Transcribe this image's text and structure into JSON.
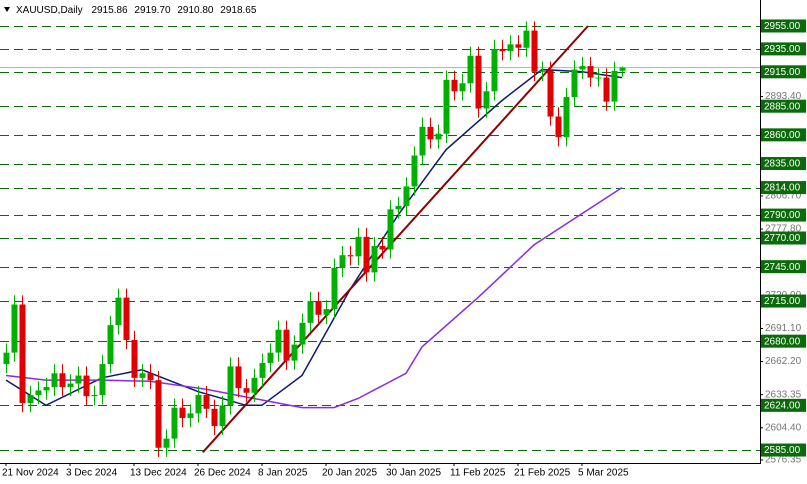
{
  "chart_data": {
    "type": "candlestick",
    "title": "XAUUSD,Daily",
    "last_labels": {
      "open": "2915.86",
      "high": "2919.70",
      "low": "2910.80",
      "close": "2918.65"
    },
    "categories": [
      "21 Nov 2024",
      null,
      null,
      null,
      null,
      null,
      null,
      null,
      "3 Dec 2024",
      null,
      null,
      null,
      null,
      null,
      null,
      null,
      "13 Dec 2024",
      null,
      null,
      null,
      null,
      null,
      null,
      null,
      "26 Dec 2024",
      null,
      null,
      null,
      null,
      null,
      null,
      null,
      "8 Jan 2025",
      null,
      null,
      null,
      null,
      null,
      null,
      null,
      "20 Jan 2025",
      null,
      null,
      null,
      null,
      null,
      null,
      null,
      "30 Jan 2025",
      null,
      null,
      null,
      null,
      null,
      null,
      null,
      "11 Feb 2025",
      null,
      null,
      null,
      null,
      null,
      null,
      null,
      "21 Feb 2025",
      null,
      null,
      null,
      null,
      null,
      null,
      null,
      "5 Mar 2025",
      null,
      null,
      null,
      null,
      null
    ],
    "open": [
      2660,
      2670,
      2712,
      2626,
      2633,
      2637,
      2640,
      2652,
      2640,
      2643,
      2650,
      2632,
      2633,
      2660,
      2694,
      2718,
      2681,
      2648,
      2652,
      2646,
      2587,
      2595,
      2622,
      2613,
      2617,
      2633,
      2621,
      2606,
      2624,
      2658,
      2639,
      2635,
      2648,
      2661,
      2670,
      2690,
      2663,
      2677,
      2696,
      2715,
      2703,
      2708,
      2744,
      2755,
      2754,
      2771,
      2740,
      2763,
      2760,
      2795,
      2798,
      2815,
      2842,
      2867,
      2856,
      2861,
      2908,
      2898,
      2905,
      2929,
      2883,
      2898,
      2935,
      2933,
      2939,
      2936,
      2951,
      2915,
      2916,
      2876,
      2858,
      2893,
      2917,
      2920,
      2910,
      2910,
      2889,
      2915.86
    ],
    "high": [
      2678,
      2720,
      2720,
      2641,
      2645,
      2648,
      2660,
      2660,
      2651,
      2658,
      2658,
      2641,
      2668,
      2702,
      2726,
      2726,
      2689,
      2660,
      2660,
      2654,
      2603,
      2630,
      2630,
      2625,
      2641,
      2641,
      2629,
      2632,
      2666,
      2666,
      2647,
      2656,
      2669,
      2678,
      2698,
      2698,
      2685,
      2704,
      2723,
      2723,
      2716,
      2752,
      2763,
      2763,
      2779,
      2779,
      2771,
      2771,
      2803,
      2806,
      2823,
      2850,
      2875,
      2875,
      2869,
      2916,
      2916,
      2913,
      2937,
      2937,
      2906,
      2943,
      2943,
      2947,
      2947,
      2959,
      2959,
      2924,
      2924,
      2884,
      2901,
      2925,
      2928,
      2928,
      2918,
      2918,
      2924,
      2919.7
    ],
    "low": [
      2652,
      2662,
      2618,
      2618,
      2625,
      2629,
      2632,
      2632,
      2632,
      2635,
      2624,
      2624,
      2625,
      2652,
      2686,
      2673,
      2640,
      2640,
      2638,
      2579,
      2579,
      2587,
      2605,
      2605,
      2609,
      2613,
      2598,
      2598,
      2616,
      2631,
      2627,
      2627,
      2640,
      2653,
      2662,
      2655,
      2655,
      2669,
      2688,
      2695,
      2695,
      2700,
      2736,
      2746,
      2746,
      2732,
      2732,
      2752,
      2752,
      2787,
      2790,
      2807,
      2834,
      2848,
      2848,
      2853,
      2890,
      2890,
      2897,
      2875,
      2875,
      2890,
      2925,
      2925,
      2928,
      2928,
      2907,
      2907,
      2868,
      2850,
      2850,
      2885,
      2909,
      2902,
      2902,
      2881,
      2881,
      2910.8
    ],
    "close": [
      2670,
      2712,
      2626,
      2633,
      2637,
      2640,
      2652,
      2640,
      2643,
      2650,
      2632,
      2633,
      2660,
      2694,
      2718,
      2681,
      2648,
      2652,
      2646,
      2587,
      2595,
      2622,
      2613,
      2617,
      2633,
      2621,
      2606,
      2624,
      2658,
      2639,
      2635,
      2648,
      2661,
      2670,
      2690,
      2663,
      2677,
      2696,
      2715,
      2703,
      2708,
      2744,
      2755,
      2754,
      2771,
      2740,
      2763,
      2760,
      2795,
      2798,
      2815,
      2842,
      2867,
      2856,
      2861,
      2908,
      2898,
      2905,
      2929,
      2883,
      2898,
      2935,
      2933,
      2939,
      2936,
      2951,
      2915,
      2916,
      2876,
      2858,
      2893,
      2917,
      2920,
      2910,
      2910,
      2889,
      2915.86,
      2918.65
    ],
    "up_color": "#00b000",
    "down_color": "#e00000",
    "ylim": [
      2573.7,
      2973.3
    ],
    "yticks": [
      2576.35,
      {
        "value": 2604.4,
        "label": "2604.40"
      },
      2633.35,
      {
        "value": 2662.2,
        "label": "2662.20"
      },
      {
        "value": 2691.1,
        "label": "2691.10"
      },
      {
        "value": 2720,
        "label": "2720.00"
      },
      {
        "value": 2777.8,
        "label": "2777.80"
      },
      {
        "value": 2806.7,
        "label": "2806.70"
      },
      {
        "value": 2893.4,
        "label": "2893.40"
      }
    ],
    "levels": [
      {
        "value": 2955,
        "label": "2955.00"
      },
      {
        "value": 2935,
        "label": "2935.00"
      },
      {
        "value": 2915,
        "label": "2915.00"
      },
      {
        "value": 2885,
        "label": "2885.00"
      },
      {
        "value": 2860,
        "label": "2860.00"
      },
      {
        "value": 2835,
        "label": "2835.00"
      },
      {
        "value": 2814,
        "label": "2814.00"
      },
      {
        "value": 2790,
        "label": "2790.00"
      },
      {
        "value": 2770,
        "label": "2770.00"
      },
      {
        "value": 2745,
        "label": "2745.00"
      },
      {
        "value": 2715,
        "label": "2715.00"
      },
      {
        "value": 2680,
        "label": "2680.00"
      },
      {
        "value": 2624,
        "label": "2624.00"
      },
      {
        "value": 2585,
        "label": "2585.00"
      }
    ],
    "level_color": "#0b6b0b",
    "price_line_color": "#b0b0b0",
    "ma_lines": [
      {
        "color": "#0a1a6e",
        "x": [
          0,
          5,
          12,
          17,
          24,
          30,
          32,
          37,
          43,
          49,
          55,
          62,
          67,
          72,
          77
        ],
        "values": [
          2646,
          2624,
          2648,
          2655,
          2636,
          2624,
          2624,
          2650,
          2725,
          2790,
          2847,
          2890,
          2917,
          2915,
          2910
        ]
      },
      {
        "color": "#8a2be2",
        "x": [
          0,
          5,
          12,
          18,
          25,
          31,
          37,
          41,
          44,
          50,
          52,
          59,
          66,
          77
        ],
        "values": [
          2650,
          2646,
          2646,
          2645,
          2638,
          2630,
          2622,
          2622,
          2630,
          2652,
          2675,
          2718,
          2764,
          2814
        ]
      }
    ],
    "trendline": {
      "color": "#8b0000",
      "x": [
        24.6,
        72.75
      ],
      "values": [
        2583,
        2955
      ]
    }
  }
}
